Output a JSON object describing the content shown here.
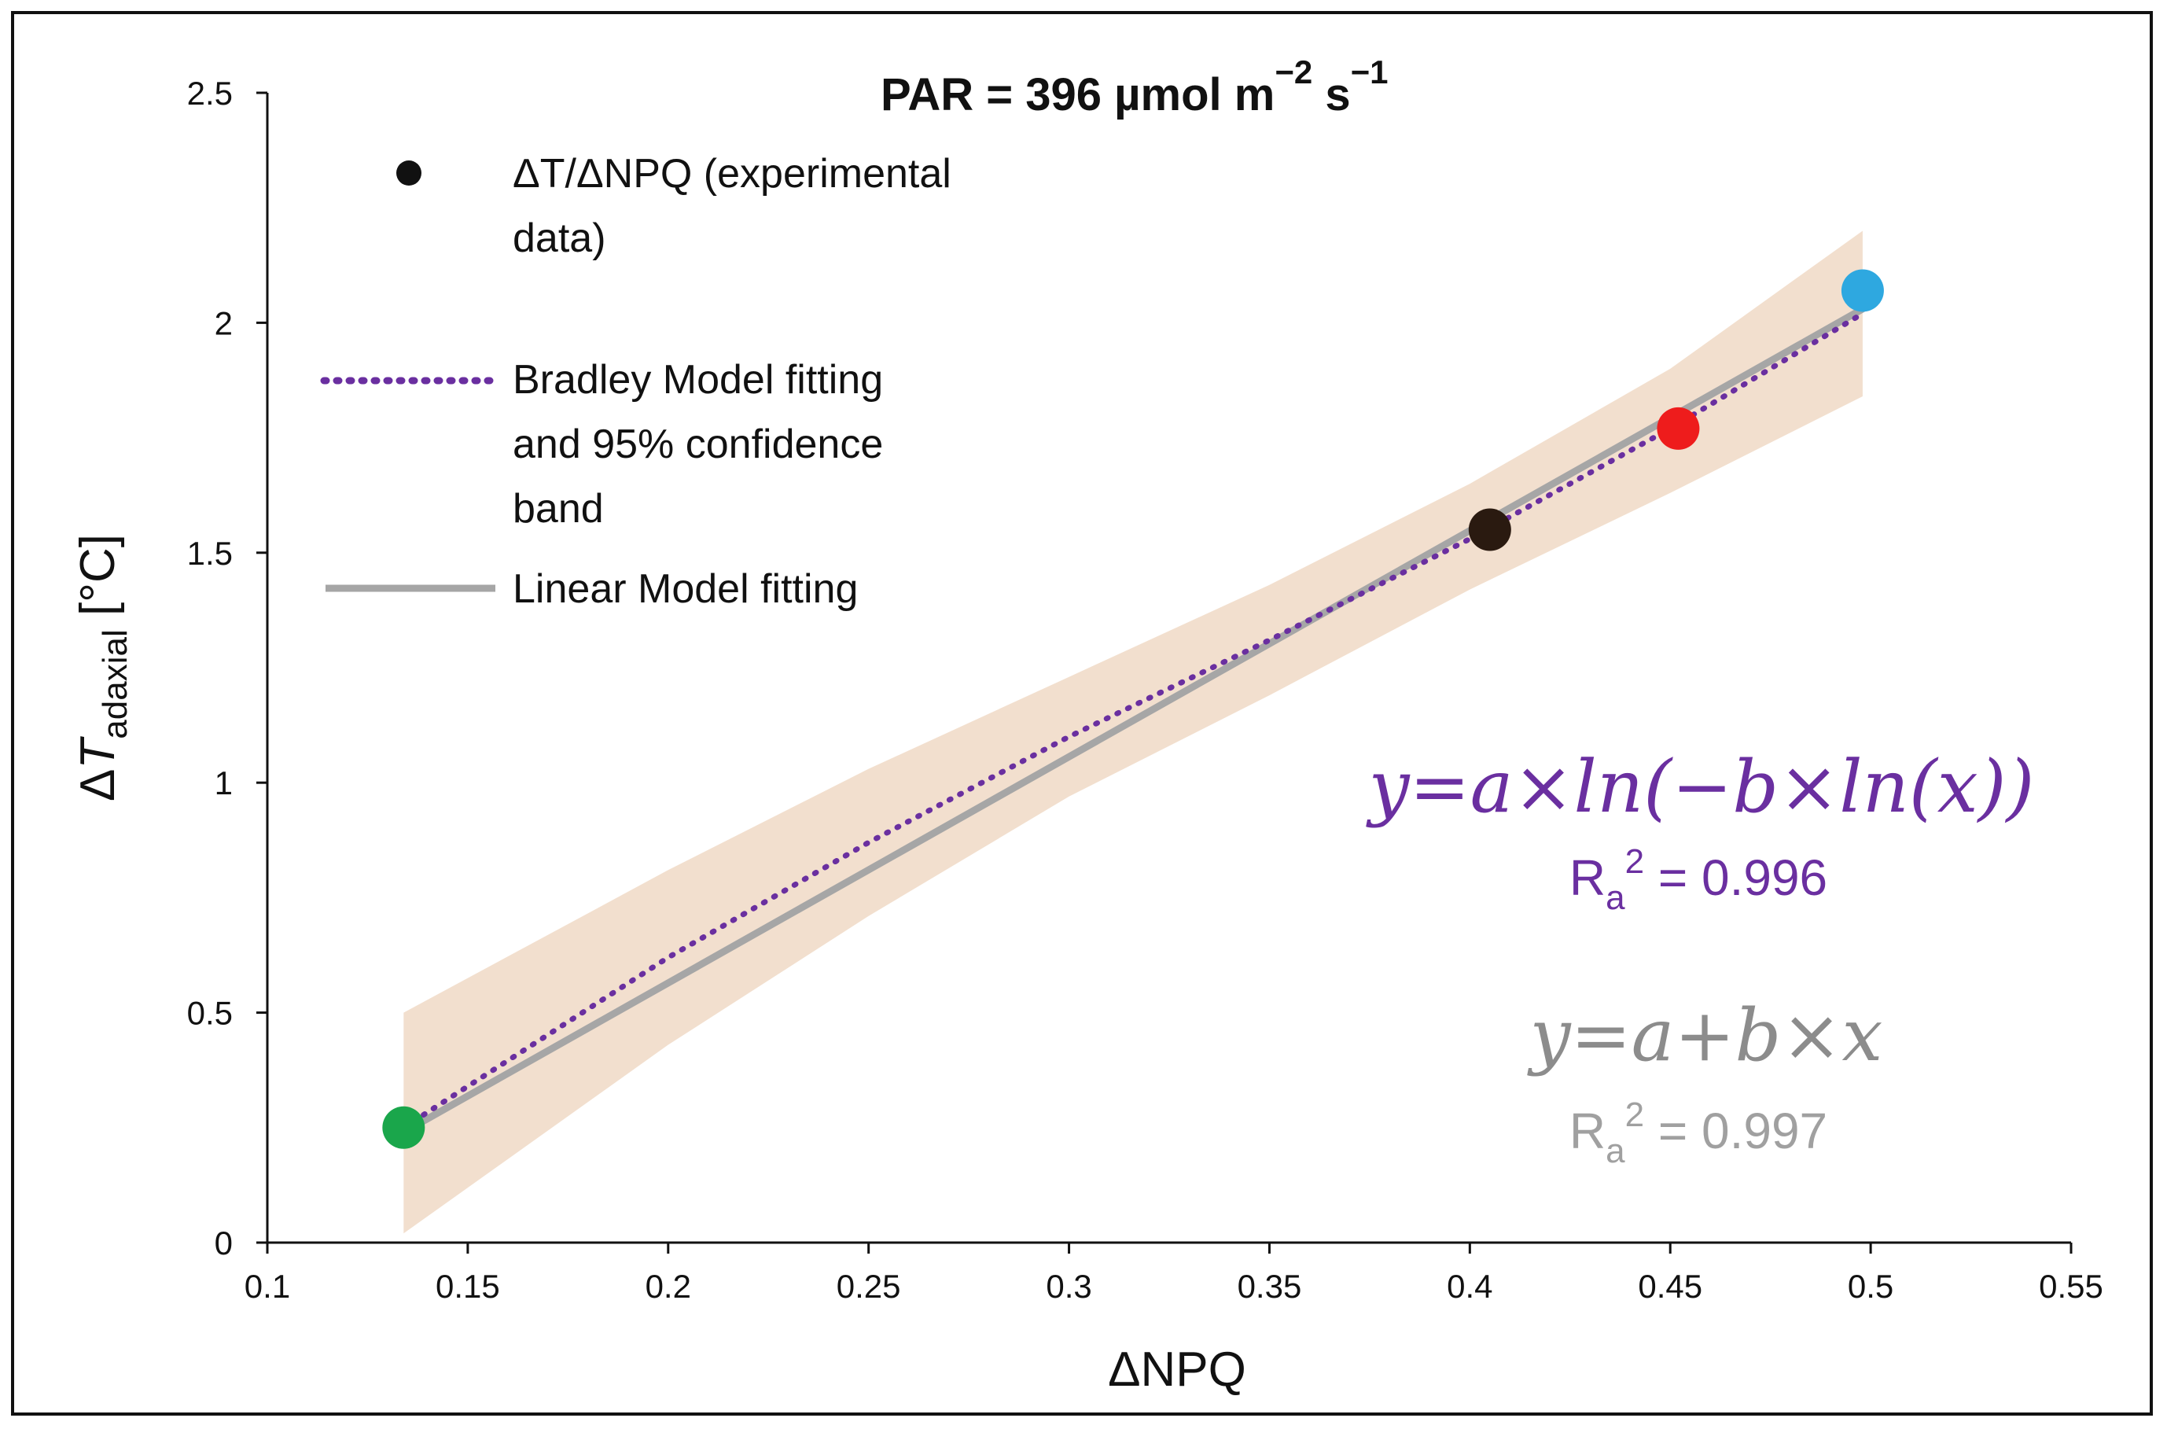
{
  "chart_data": {
    "type": "scatter",
    "title": "PAR = 396 µmol m",
    "title_exp1": "−2",
    "title_unit2": " s",
    "title_exp2": "−1",
    "xlabel": "ΔNPQ",
    "ylabel_main": "Δ",
    "ylabel_var": "T",
    "ylabel_sub": "adaxial",
    "ylabel_unit": " [°C]",
    "xlim": [
      0.1,
      0.55
    ],
    "ylim": [
      0,
      2.5
    ],
    "x_ticks": [
      "0.1",
      "0.15",
      "0.2",
      "0.25",
      "0.3",
      "0.35",
      "0.4",
      "0.45",
      "0.5",
      "0.55"
    ],
    "y_ticks": [
      "0",
      "0.5",
      "1",
      "1.5",
      "2",
      "2.5"
    ],
    "grid": false,
    "legend_position": "top-left",
    "legend": [
      {
        "label_line1": "ΔT/ΔNPQ (experimental",
        "label_line2": "data)"
      },
      {
        "label_line1": "Bradley Model fitting",
        "label_line2": "and 95% confidence",
        "label_line3": "band"
      },
      {
        "label_line1": "Linear Model fitting"
      }
    ],
    "points": [
      {
        "x": 0.134,
        "y": 0.25,
        "color": "#1aa64b"
      },
      {
        "x": 0.405,
        "y": 1.55,
        "color": "#2a1a10"
      },
      {
        "x": 0.452,
        "y": 1.77,
        "color": "#ee1c1c"
      },
      {
        "x": 0.498,
        "y": 2.07,
        "color": "#2ea8e0"
      }
    ],
    "bradley_fit": [
      {
        "x": 0.134,
        "y": 0.25
      },
      {
        "x": 0.2,
        "y": 0.62
      },
      {
        "x": 0.25,
        "y": 0.87
      },
      {
        "x": 0.3,
        "y": 1.1
      },
      {
        "x": 0.35,
        "y": 1.31
      },
      {
        "x": 0.4,
        "y": 1.53
      },
      {
        "x": 0.45,
        "y": 1.77
      },
      {
        "x": 0.498,
        "y": 2.02
      }
    ],
    "confidence_band_upper": [
      {
        "x": 0.134,
        "y": 0.5
      },
      {
        "x": 0.2,
        "y": 0.81
      },
      {
        "x": 0.25,
        "y": 1.03
      },
      {
        "x": 0.3,
        "y": 1.23
      },
      {
        "x": 0.35,
        "y": 1.43
      },
      {
        "x": 0.4,
        "y": 1.65
      },
      {
        "x": 0.45,
        "y": 1.9
      },
      {
        "x": 0.498,
        "y": 2.2
      }
    ],
    "confidence_band_lower": [
      {
        "x": 0.134,
        "y": 0.02
      },
      {
        "x": 0.2,
        "y": 0.43
      },
      {
        "x": 0.25,
        "y": 0.71
      },
      {
        "x": 0.3,
        "y": 0.97
      },
      {
        "x": 0.35,
        "y": 1.19
      },
      {
        "x": 0.4,
        "y": 1.42
      },
      {
        "x": 0.45,
        "y": 1.63
      },
      {
        "x": 0.498,
        "y": 1.84
      }
    ],
    "linear_fit": [
      {
        "x": 0.134,
        "y": 0.24
      },
      {
        "x": 0.498,
        "y": 2.03
      }
    ],
    "annotations": {
      "bradley_equation": "y=a×ln(−b×ln(x))",
      "bradley_r2_label": "R",
      "bradley_r2_sub": "a",
      "bradley_r2_sup": "2",
      "bradley_r2_value": " = 0.996",
      "linear_equation": "y=a+b×x",
      "linear_r2_label": "R",
      "linear_r2_sub": "a",
      "linear_r2_sup": "2",
      "linear_r2_value": " = 0.997"
    },
    "colors": {
      "bradley": "#6a2fa0",
      "linear": "#a6a6a6",
      "band": "#f0d9c6",
      "legend_dot": "#111111",
      "axis": "#111111"
    }
  }
}
